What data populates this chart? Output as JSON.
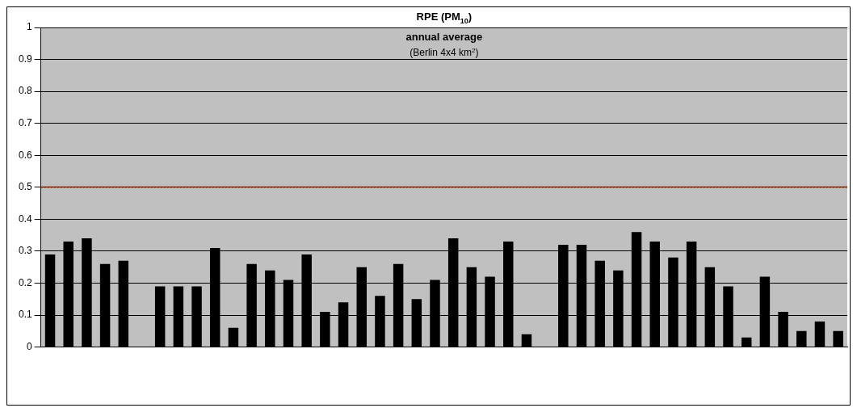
{
  "chart_data": {
    "type": "bar",
    "title": "RPE (PM$_{10}$)",
    "subtitle": "annual average",
    "annotations": [
      "(Berlin 4x4 km$^{2}$)"
    ],
    "categories": [
      null,
      null,
      null,
      null,
      null,
      null,
      null,
      null,
      null,
      null,
      null,
      null,
      null,
      null,
      null,
      null,
      null,
      null,
      null,
      null,
      null,
      null,
      null,
      null,
      null,
      null,
      null,
      null,
      null,
      null,
      null,
      null,
      null,
      null,
      null,
      null,
      null,
      null,
      null,
      null,
      null,
      null,
      null,
      null
    ],
    "series": [
      {
        "color": "#000000",
        "values": [
          0.29,
          0.33,
          0.34,
          0.26,
          0.27,
          null,
          0.19,
          0.19,
          0.19,
          0.31,
          0.06,
          0.26,
          0.24,
          0.21,
          0.29,
          0.11,
          0.14,
          0.25,
          0.16,
          0.26,
          0.15,
          0.21,
          0.34,
          0.25,
          0.22,
          0.33,
          0.04,
          null,
          0.32,
          0.32,
          0.27,
          0.24,
          0.36,
          0.33,
          0.28,
          0.33,
          0.25,
          0.19,
          0.03,
          0.22,
          0.11,
          0.05,
          0.08,
          0.05
        ]
      }
    ],
    "ylim": [
      0,
      1
    ],
    "yticks": [
      0,
      0.1,
      0.2,
      0.3,
      0.4,
      0.5,
      0.6,
      0.7,
      0.8,
      0.9,
      1
    ],
    "grid": "y",
    "legend": false,
    "ref_lines": [
      {
        "axis": "y",
        "value": 0.5,
        "color": "#c04000",
        "line_style": "dotted"
      }
    ]
  }
}
